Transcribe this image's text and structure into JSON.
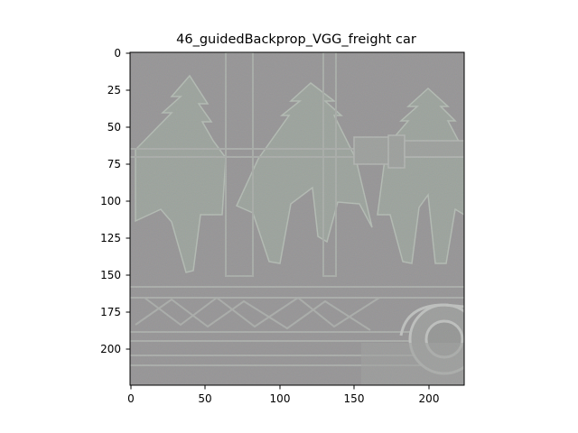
{
  "figure": {
    "title": "46_guidedBackprop_VGG_freight car"
  },
  "image": {
    "background_color": "#8f8f8f",
    "subject": "guided backprop saliency map of a freight car",
    "tint_color": "#93a093"
  },
  "axes": {
    "x_range": [
      0,
      224
    ],
    "y_range": [
      0,
      224
    ],
    "y_inverted": true,
    "x_ticks": [
      0,
      50,
      100,
      150,
      200
    ],
    "y_ticks": [
      0,
      25,
      50,
      75,
      100,
      125,
      150,
      175,
      200
    ],
    "x_tick_labels": [
      "0",
      "50",
      "100",
      "150",
      "200"
    ],
    "y_tick_labels": [
      "0",
      "25",
      "50",
      "75",
      "100",
      "125",
      "150",
      "175",
      "200"
    ]
  }
}
